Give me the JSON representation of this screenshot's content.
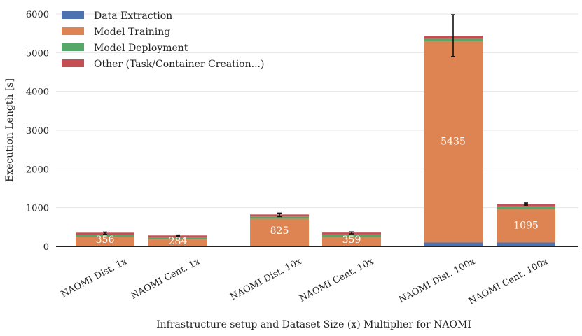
{
  "chart_data": {
    "type": "bar",
    "stacked": true,
    "title": "",
    "xlabel": "Infrastructure setup and Dataset Size (x) Multiplier for NAOMI",
    "ylabel": "Execution Length [s]",
    "ylim": [
      0,
      6000
    ],
    "yticks": [
      0,
      1000,
      2000,
      3000,
      4000,
      5000,
      6000
    ],
    "grid": true,
    "legend_position": "top-left",
    "categories": [
      "NAOMI Dist. 1x",
      "NAOMI Cent. 1x",
      "NAOMI Dist. 10x",
      "NAOMI Cent. 10x",
      "NAOMI Dist. 100x",
      "NAOMI Cent. 100x"
    ],
    "series": [
      {
        "name": "Data Extraction",
        "color": "#4c72b0",
        "values": [
          5,
          5,
          15,
          12,
          100,
          100
        ]
      },
      {
        "name": "Model Training",
        "color": "#dd8452",
        "values": [
          246,
          174,
          700,
          232,
          5200,
          870
        ]
      },
      {
        "name": "Model Deployment",
        "color": "#55a868",
        "values": [
          55,
          55,
          60,
          65,
          60,
          65
        ]
      },
      {
        "name": "Other (Task/Container Creation...)",
        "color": "#c44e52",
        "values": [
          50,
          50,
          50,
          50,
          75,
          60
        ]
      }
    ],
    "totals": [
      356,
      284,
      825,
      359,
      5435,
      1095
    ],
    "error_bars": [
      {
        "low": 310,
        "high": 370
      },
      {
        "low": 265,
        "high": 295
      },
      {
        "low": 770,
        "high": 860
      },
      {
        "low": 325,
        "high": 375
      },
      {
        "low": 4900,
        "high": 5980
      },
      {
        "low": 1065,
        "high": 1120
      }
    ],
    "groups": [
      [
        0,
        1
      ],
      [
        2,
        3
      ],
      [
        4,
        5
      ]
    ]
  }
}
